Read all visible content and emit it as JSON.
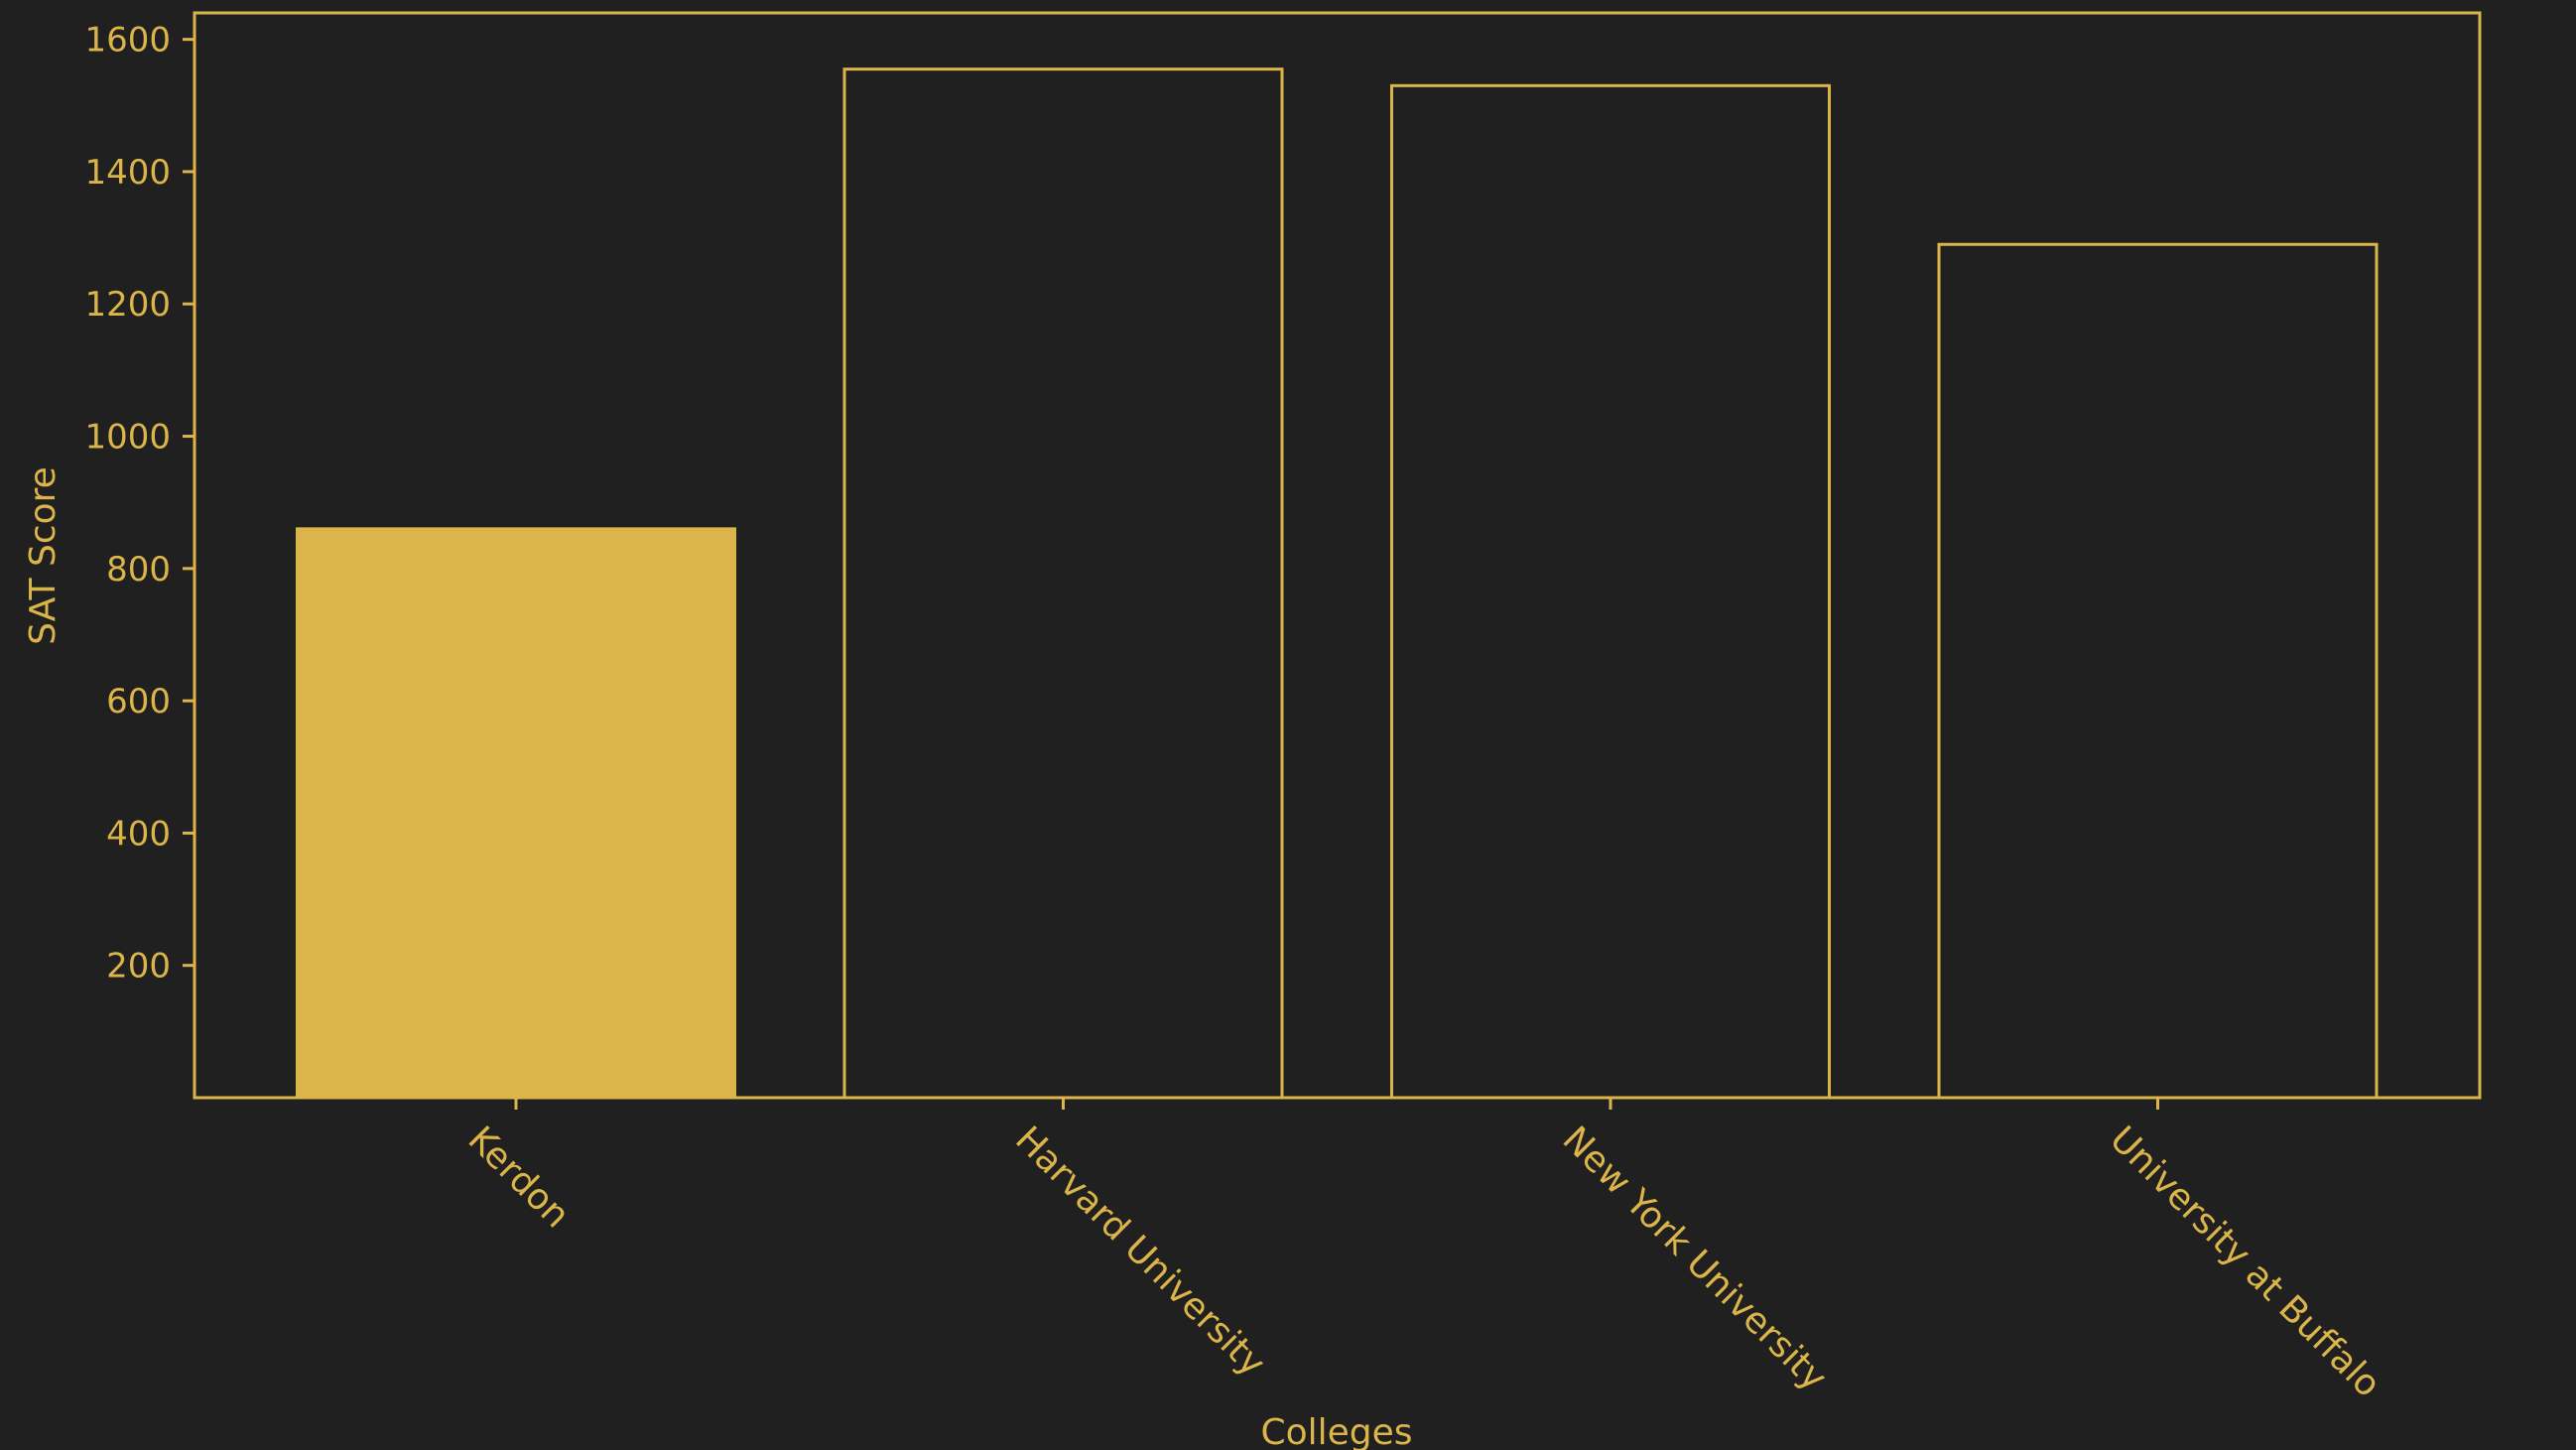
{
  "colors": {
    "background": "#202020",
    "accent": "#dbb54a"
  },
  "chart_data": {
    "type": "bar",
    "title": "",
    "xlabel": "Colleges",
    "ylabel": "SAT Score",
    "categories": [
      "Kerdon",
      "Harvard University",
      "New York University",
      "University at Buffalo"
    ],
    "values": [
      860,
      1555,
      1530,
      1290
    ],
    "filled": [
      true,
      false,
      false,
      false
    ],
    "ylim": [
      0,
      1640
    ],
    "yticks": [
      200,
      400,
      600,
      800,
      1000,
      1200,
      1400,
      1600
    ],
    "grid": false,
    "legend": "none"
  }
}
